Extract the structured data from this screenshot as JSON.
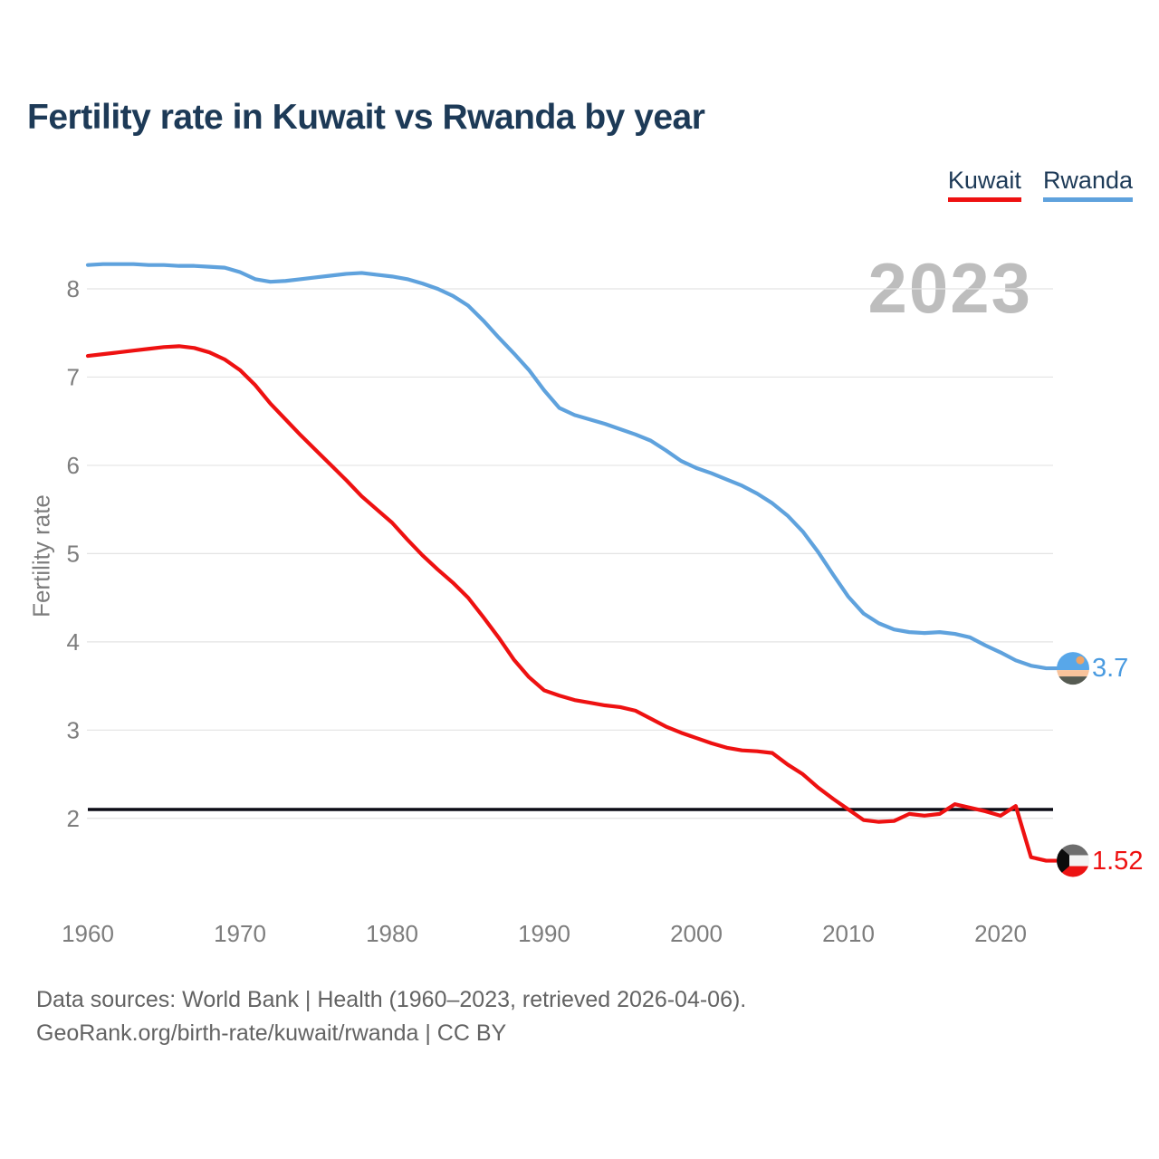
{
  "header": {
    "title": "Fertility rate in Kuwait vs Rwanda by year"
  },
  "legend": {
    "items": [
      {
        "label": "Kuwait",
        "color": "#ee1111"
      },
      {
        "label": "Rwanda",
        "color": "#5fa2dd"
      }
    ]
  },
  "watermark": {
    "year": "2023"
  },
  "end_labels": [
    {
      "series": "Kuwait",
      "value": "1.52",
      "color": "#ee1111"
    },
    {
      "series": "Rwanda",
      "value": "3.7",
      "color": "#4a9be0"
    }
  ],
  "footer": {
    "line1": "Data sources: World Bank | Health (1960–2023, retrieved 2026-04-06).",
    "line2": "GeoRank.org/birth-rate/kuwait/rwanda | CC BY"
  },
  "chart_data": {
    "type": "line",
    "title": "Fertility rate in Kuwait vs Rwanda by year",
    "xlabel": "",
    "ylabel": "Fertility rate",
    "legend_position": "top-right",
    "grid": "horizontal",
    "xlim": [
      1960,
      2023
    ],
    "ylim": [
      1.4,
      8.5
    ],
    "x_ticks": [
      1960,
      1970,
      1980,
      1990,
      2000,
      2010,
      2020
    ],
    "y_ticks": [
      2,
      3,
      4,
      5,
      6,
      7,
      8
    ],
    "replacement_line_y": 2.1,
    "x": [
      1960,
      1961,
      1962,
      1963,
      1964,
      1965,
      1966,
      1967,
      1968,
      1969,
      1970,
      1971,
      1972,
      1973,
      1974,
      1975,
      1976,
      1977,
      1978,
      1979,
      1980,
      1981,
      1982,
      1983,
      1984,
      1985,
      1986,
      1987,
      1988,
      1989,
      1990,
      1991,
      1992,
      1993,
      1994,
      1995,
      1996,
      1997,
      1998,
      1999,
      2000,
      2001,
      2002,
      2003,
      2004,
      2005,
      2006,
      2007,
      2008,
      2009,
      2010,
      2011,
      2012,
      2013,
      2014,
      2015,
      2016,
      2017,
      2018,
      2019,
      2020,
      2021,
      2022,
      2023
    ],
    "series": [
      {
        "name": "Kuwait",
        "color": "#ee1111",
        "end_label": "1.52",
        "values": [
          7.24,
          7.26,
          7.28,
          7.3,
          7.32,
          7.34,
          7.35,
          7.33,
          7.28,
          7.2,
          7.08,
          6.91,
          6.7,
          6.52,
          6.34,
          6.17,
          6.0,
          5.83,
          5.65,
          5.5,
          5.35,
          5.16,
          4.98,
          4.82,
          4.67,
          4.5,
          4.28,
          4.05,
          3.8,
          3.6,
          3.45,
          3.39,
          3.34,
          3.31,
          3.28,
          3.26,
          3.22,
          3.13,
          3.04,
          2.97,
          2.91,
          2.85,
          2.8,
          2.77,
          2.76,
          2.74,
          2.61,
          2.5,
          2.35,
          2.22,
          2.1,
          1.98,
          1.96,
          1.97,
          2.05,
          2.03,
          2.05,
          2.16,
          2.12,
          2.08,
          2.03,
          2.14,
          1.56,
          1.52
        ]
      },
      {
        "name": "Rwanda",
        "color": "#5fa2dd",
        "end_label": "3.7",
        "values": [
          8.27,
          8.28,
          8.28,
          8.28,
          8.27,
          8.27,
          8.26,
          8.26,
          8.25,
          8.24,
          8.19,
          8.11,
          8.08,
          8.09,
          8.11,
          8.13,
          8.15,
          8.17,
          8.18,
          8.16,
          8.14,
          8.11,
          8.06,
          8.0,
          7.92,
          7.81,
          7.64,
          7.45,
          7.27,
          7.08,
          6.85,
          6.65,
          6.57,
          6.52,
          6.47,
          6.41,
          6.35,
          6.28,
          6.17,
          6.05,
          5.97,
          5.91,
          5.84,
          5.77,
          5.68,
          5.57,
          5.43,
          5.25,
          5.02,
          4.76,
          4.51,
          4.32,
          4.21,
          4.14,
          4.11,
          4.1,
          4.11,
          4.09,
          4.05,
          3.96,
          3.88,
          3.79,
          3.73,
          3.7
        ]
      }
    ]
  }
}
